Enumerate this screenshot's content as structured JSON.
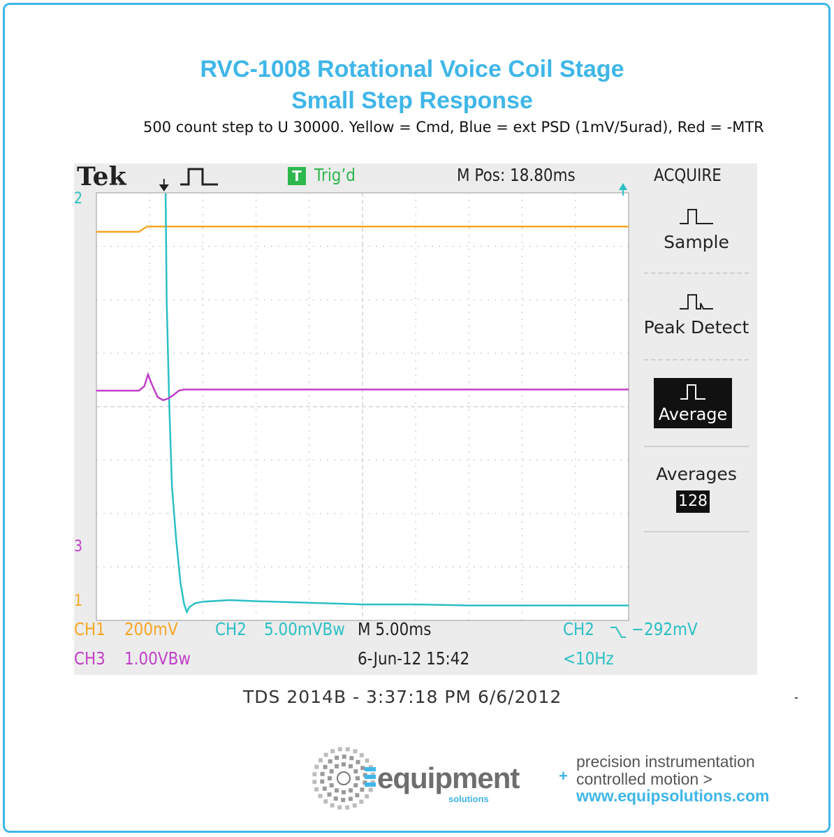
{
  "title_line1": "RVC-1008 Rotational Voice Coil Stage",
  "title_line2": "Small Step Response",
  "subtitle": "500 count step to U 30000.  Yellow = Cmd, Blue = ext PSD (1mV/5urad), Red = -MTR",
  "scope": {
    "brand": "Tek",
    "trig_badge": "T",
    "trig_status": "Trig’d",
    "m_pos": "M Pos: 18.80ms",
    "menu_title": "ACQUIRE",
    "menu_items": [
      "Sample",
      "Peak Detect",
      "Average",
      "Averages"
    ],
    "averages_value": "128",
    "ch2_marker": "2",
    "ch3_marker": "3",
    "ch1_marker": "1",
    "ch1_label": "CH1",
    "ch1_scale": "200mV",
    "ch2_label": "CH2",
    "ch2_scale": "5.00mVBw",
    "timebase": "M 5.00ms",
    "trigger_src": "CH2",
    "trigger_level": "−292mV",
    "ch3_label": "CH3",
    "ch3_scale": "1.00VBw",
    "date_time": "6-Jun-12 15:42",
    "freq": "<10Hz"
  },
  "footer_model": "TDS 2014B - 3:37:18 PM   6/6/2012",
  "logo": {
    "word": "equipment",
    "sub": "solutions"
  },
  "tagline": [
    "precision instrumentation",
    "controlled motion >",
    "www.equipsolutions.com"
  ],
  "colors": {
    "accent": "#3fb6e8",
    "ch1": "#f5a623",
    "ch2": "#2bbfc4",
    "ch3": "#c040c8"
  },
  "chart_data": {
    "type": "line",
    "x_unit": "div",
    "y_unit": "div",
    "xlim": [
      0,
      10
    ],
    "ylim": [
      -4,
      4
    ],
    "grid": true,
    "series": [
      {
        "name": "CH1",
        "color": "#f5a623",
        "x": [
          0,
          0.8,
          0.95,
          1.2,
          10
        ],
        "y": [
          3.27,
          3.27,
          3.37,
          3.37,
          3.37
        ]
      },
      {
        "name": "CH2",
        "color": "#2bbfc4",
        "x": [
          1.3,
          1.32,
          1.37,
          1.42,
          1.5,
          1.58,
          1.65,
          1.7,
          1.75,
          1.85,
          2.0,
          2.5,
          3.0,
          4.0,
          5.0,
          6.0,
          7.0,
          8.0,
          9.0,
          10
        ],
        "y": [
          3.99,
          2.0,
          0.0,
          -1.5,
          -2.5,
          -3.3,
          -3.7,
          -3.84,
          -3.75,
          -3.68,
          -3.65,
          -3.62,
          -3.64,
          -3.67,
          -3.7,
          -3.7,
          -3.72,
          -3.72,
          -3.72,
          -3.72
        ]
      },
      {
        "name": "CH3",
        "color": "#c040c8",
        "x": [
          0,
          0.8,
          0.9,
          0.97,
          1.05,
          1.15,
          1.25,
          1.35,
          1.45,
          1.55,
          1.65,
          10
        ],
        "y": [
          0.3,
          0.3,
          0.38,
          0.6,
          0.4,
          0.18,
          0.12,
          0.15,
          0.22,
          0.3,
          0.32,
          0.32
        ]
      }
    ]
  }
}
